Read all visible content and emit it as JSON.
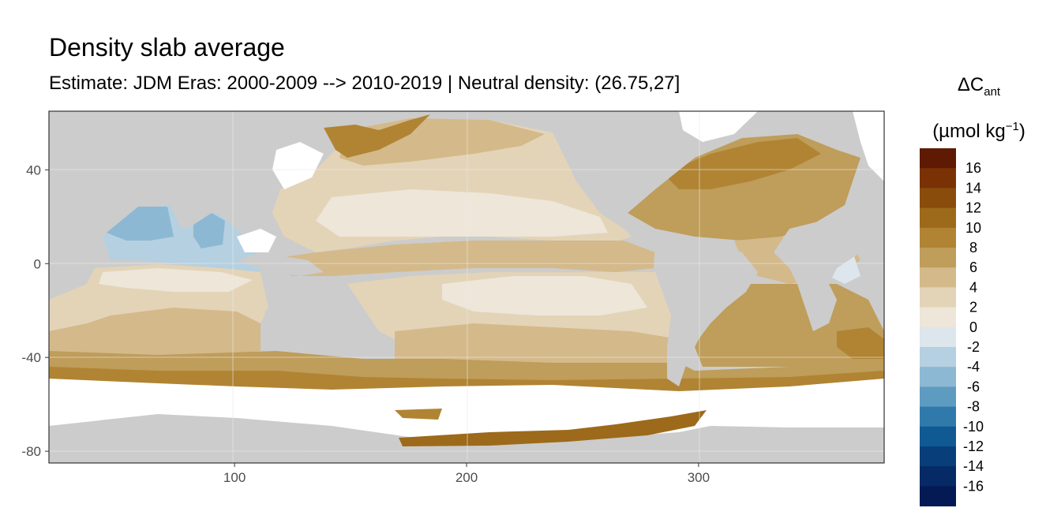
{
  "title": "Density slab average",
  "subtitle": "Estimate: JDM Eras: 2000-2009 --> 2010-2019 | Neutral density: (26.75,27]",
  "legend": {
    "title_main": "ΔC",
    "title_sub": "ant",
    "unit_open": "(µmol kg",
    "unit_sup": "−1",
    "unit_close": ")",
    "bins": [
      {
        "label": "16",
        "color": "#5e1a03"
      },
      {
        "label": "14",
        "color": "#7a3205"
      },
      {
        "label": "12",
        "color": "#8a4c0a"
      },
      {
        "label": "10",
        "color": "#9c6a1a"
      },
      {
        "label": "8",
        "color": "#b08433"
      },
      {
        "label": "6",
        "color": "#bf9d5a"
      },
      {
        "label": "4",
        "color": "#d4b98a"
      },
      {
        "label": "2",
        "color": "#e3d4b8"
      },
      {
        "label": "0",
        "color": "#ede6d9"
      },
      {
        "label": "-2",
        "color": "#dce6ec"
      },
      {
        "label": "-4",
        "color": "#b5d0e0"
      },
      {
        "label": "-6",
        "color": "#8cb8d3"
      },
      {
        "label": "-8",
        "color": "#5e9bc0"
      },
      {
        "label": "-10",
        "color": "#2f7aab"
      },
      {
        "label": "-12",
        "color": "#0f5a92"
      },
      {
        "label": "-14",
        "color": "#083f7a"
      },
      {
        "label": "-16",
        "color": "#062a66"
      },
      {
        "label": "",
        "color": "#041a55"
      }
    ]
  },
  "chart_data": {
    "type": "heatmap",
    "x_ticks": [
      100,
      200,
      300
    ],
    "y_ticks": [
      40,
      0,
      -40,
      -80
    ],
    "xlim": [
      20,
      380
    ],
    "ylim": [
      -85,
      65
    ],
    "colors": {
      "land": "#cccccc",
      "no_data": "#ffffff",
      "panel_border": "#333333",
      "grid": "#ebebeb"
    }
  }
}
